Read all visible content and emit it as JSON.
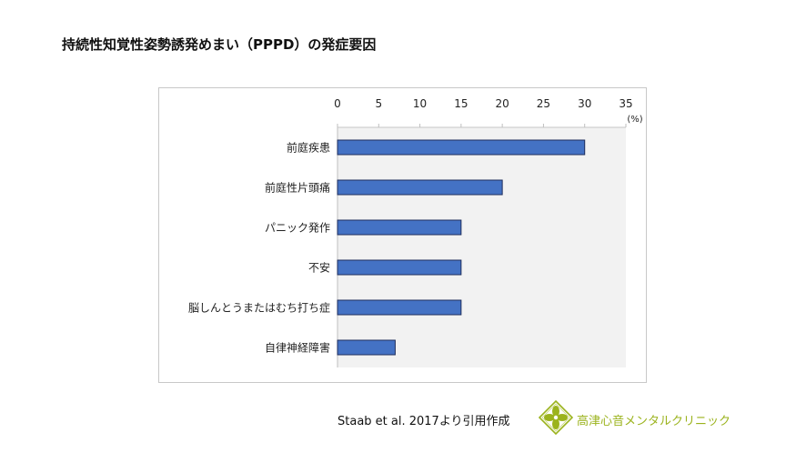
{
  "title": "持続性知覚性姿勢誘発めまい（PPPD）の発症要因",
  "footer": {
    "source": "Staab et al. 2017より引用作成",
    "clinic_name": "高津心音メンタルクリニック",
    "logo_icon": "clover-logo-icon",
    "logo_color": "#9bb31d"
  },
  "chart_data": {
    "type": "bar",
    "orientation": "horizontal",
    "categories": [
      "前庭疾患",
      "前庭性片頭痛",
      "パニック発作",
      "不安",
      "脳しんとうまたはむち打ち症",
      "自律神経障害"
    ],
    "values": [
      30,
      20,
      15,
      15,
      15,
      7
    ],
    "xlim": [
      0,
      35
    ],
    "xticks": [
      0,
      5,
      10,
      15,
      20,
      25,
      30,
      35
    ],
    "xaxis_position": "top",
    "unit_label": "(%)",
    "grid": false,
    "bar_color": "#4472c4",
    "bar_edge_color": "#1f2d5c",
    "plot_background": "#f2f2f2"
  }
}
